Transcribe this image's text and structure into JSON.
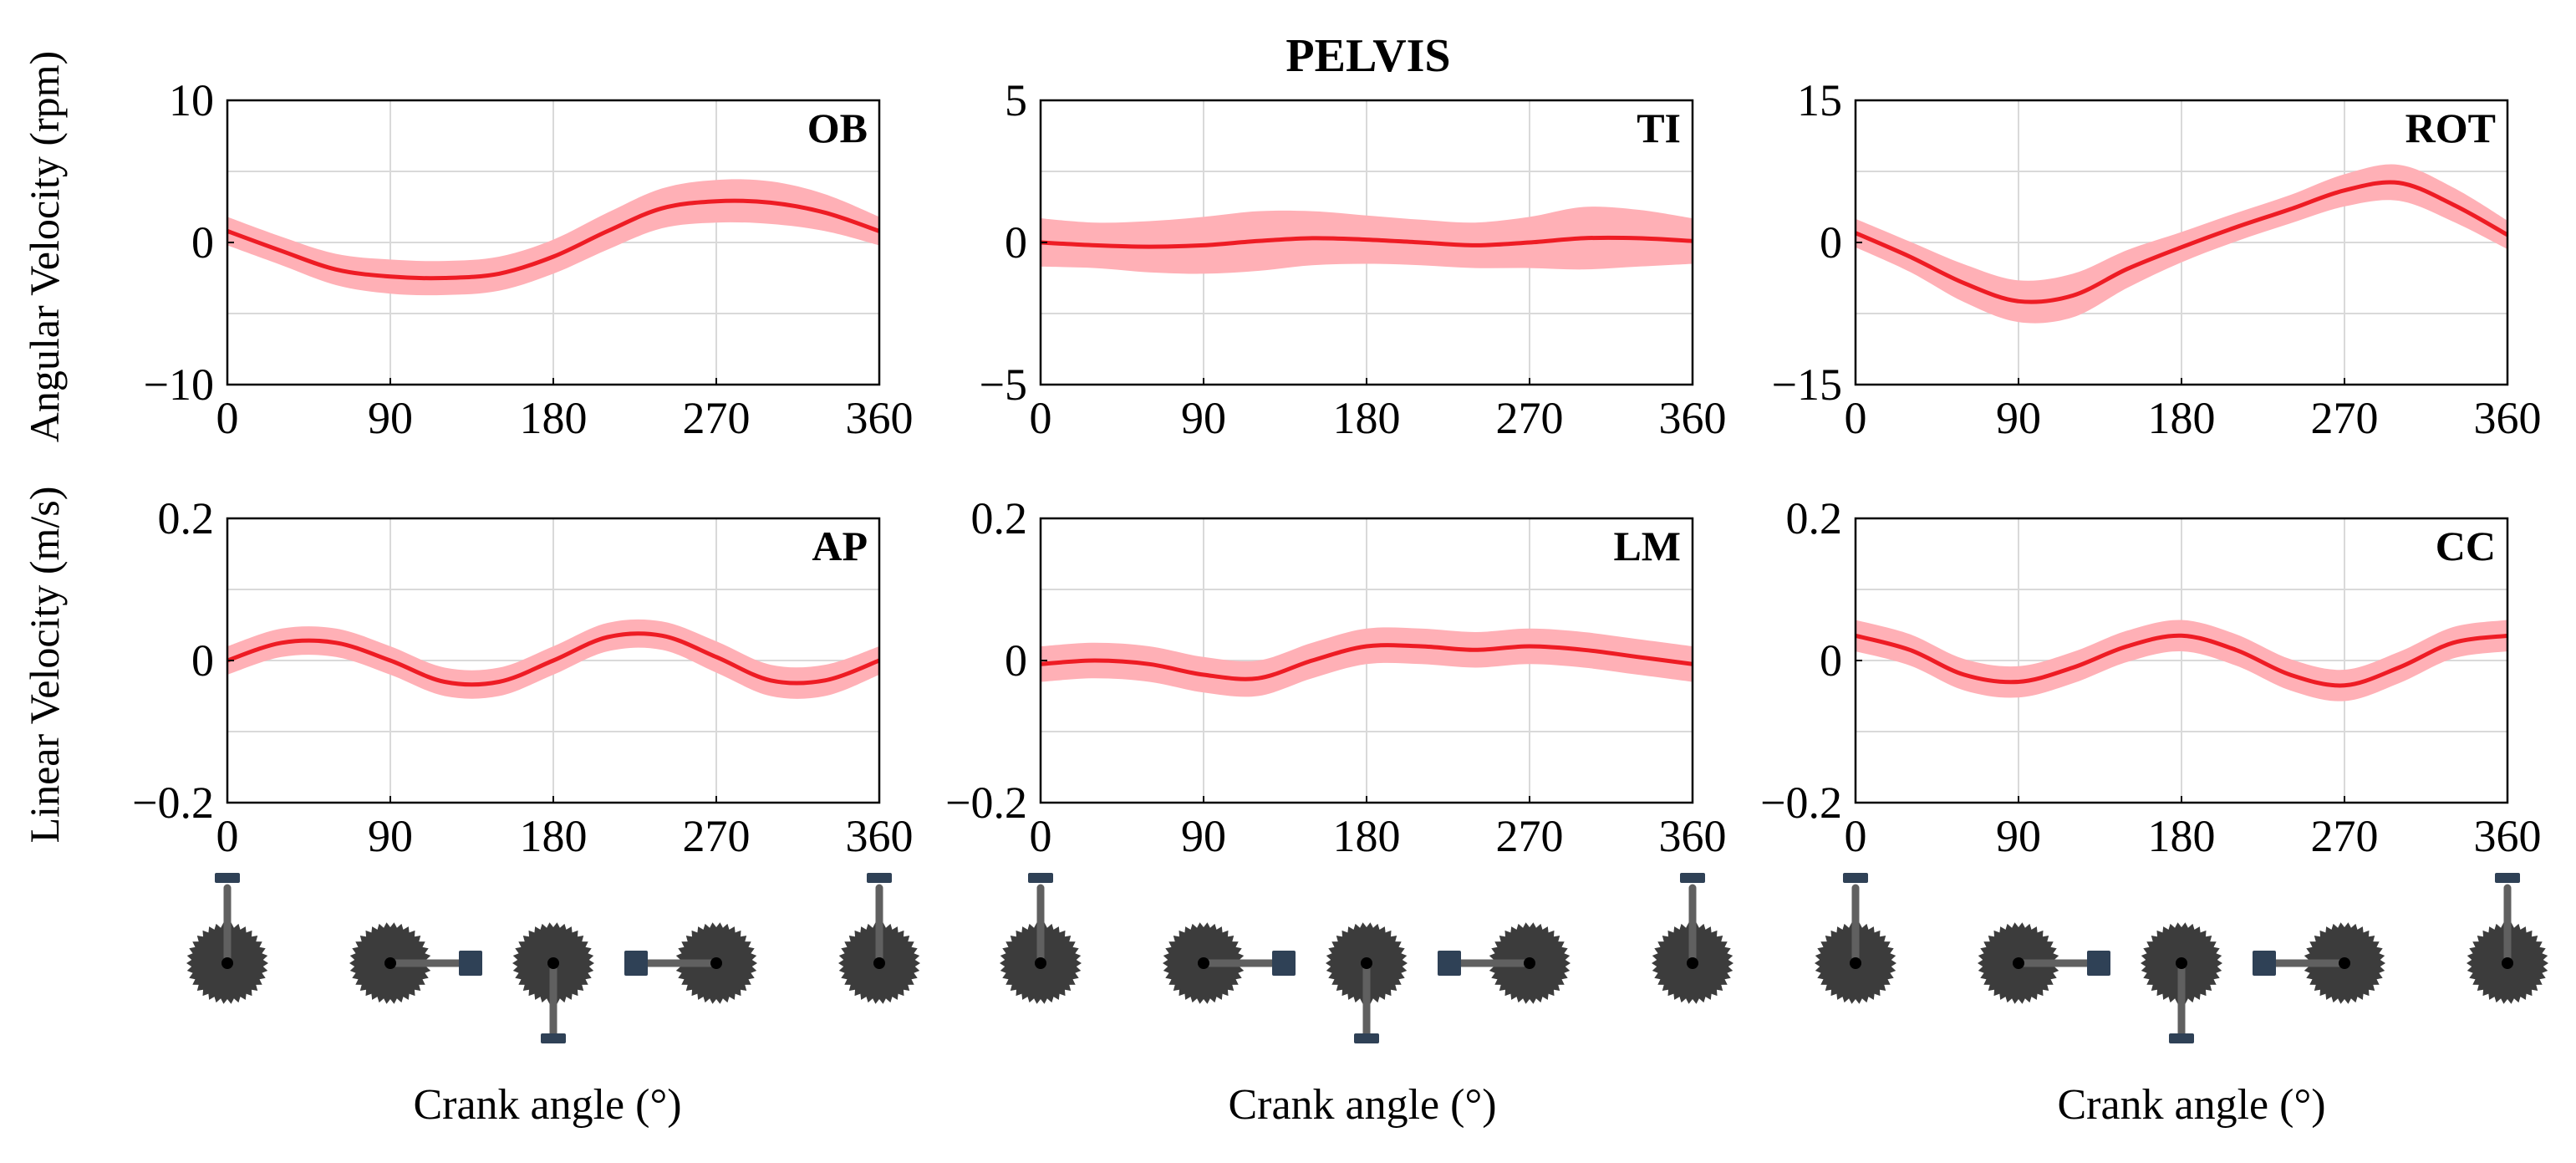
{
  "figure_title": "PELVIS",
  "row_labels": [
    "Angular Velocity (rpm)",
    "Linear Velocity (m/s)"
  ],
  "x_label": "Crank angle (°)",
  "colors": {
    "mean": "#ee1c24",
    "band": "#ffb0b6",
    "grid": "#d9d9d9",
    "sprocket": "#3c3c3c",
    "crank_arm": "#606060",
    "pedal": "#2f4156"
  },
  "crank_positions_deg": [
    0,
    90,
    180,
    270,
    360
  ],
  "chart_data": [
    {
      "id": "OB",
      "type": "line",
      "row": 0,
      "col": 0,
      "tag": "OB",
      "ylabel": "Angular Velocity (rpm)",
      "xlabel": "",
      "xlim": [
        0,
        360
      ],
      "ylim": [
        -10,
        10
      ],
      "xticks": [
        0,
        90,
        180,
        270,
        360
      ],
      "yticks": [
        -10,
        0,
        10
      ],
      "xtick_labels": [
        "0",
        "90",
        "180",
        "270",
        "360"
      ],
      "ytick_labels": [
        "−10",
        "0",
        "10"
      ],
      "x": [
        0,
        30,
        60,
        90,
        120,
        150,
        180,
        210,
        240,
        270,
        300,
        330,
        360
      ],
      "mean": [
        0.8,
        -0.6,
        -1.9,
        -2.4,
        -2.5,
        -2.2,
        -1.0,
        0.8,
        2.4,
        2.9,
        2.8,
        2.1,
        0.8
      ],
      "sd": [
        1.0,
        1.0,
        1.1,
        1.2,
        1.2,
        1.2,
        1.2,
        1.3,
        1.4,
        1.5,
        1.5,
        1.3,
        1.0
      ]
    },
    {
      "id": "TI",
      "type": "line",
      "row": 0,
      "col": 1,
      "tag": "TI",
      "ylabel": "",
      "xlabel": "",
      "xlim": [
        0,
        360
      ],
      "ylim": [
        -5,
        5
      ],
      "xticks": [
        0,
        90,
        180,
        270,
        360
      ],
      "yticks": [
        -5,
        0,
        5
      ],
      "xtick_labels": [
        "0",
        "90",
        "180",
        "270",
        "360"
      ],
      "ytick_labels": [
        "−5",
        "0",
        "5"
      ],
      "x": [
        0,
        30,
        60,
        90,
        120,
        150,
        180,
        210,
        240,
        270,
        300,
        330,
        360
      ],
      "mean": [
        0.0,
        -0.1,
        -0.15,
        -0.1,
        0.05,
        0.15,
        0.1,
        0.0,
        -0.1,
        0.0,
        0.15,
        0.15,
        0.05
      ],
      "sd": [
        0.85,
        0.8,
        0.9,
        1.0,
        1.05,
        0.95,
        0.85,
        0.8,
        0.8,
        0.9,
        1.1,
        1.0,
        0.8
      ]
    },
    {
      "id": "ROT",
      "type": "line",
      "row": 0,
      "col": 2,
      "tag": "ROT",
      "ylabel": "",
      "xlabel": "",
      "xlim": [
        0,
        360
      ],
      "ylim": [
        -15,
        15
      ],
      "xticks": [
        0,
        90,
        180,
        270,
        360
      ],
      "yticks": [
        -15,
        0,
        15
      ],
      "xtick_labels": [
        "0",
        "90",
        "180",
        "270",
        "360"
      ],
      "ytick_labels": [
        "−15",
        "0",
        "15"
      ],
      "x": [
        0,
        30,
        60,
        90,
        120,
        150,
        180,
        210,
        240,
        270,
        300,
        330,
        360
      ],
      "mean": [
        1.0,
        -1.5,
        -4.3,
        -6.2,
        -5.6,
        -2.8,
        -0.5,
        1.6,
        3.5,
        5.5,
        6.3,
        4.0,
        0.8
      ],
      "sd": [
        1.5,
        1.6,
        2.0,
        2.2,
        2.3,
        2.0,
        1.6,
        1.5,
        1.5,
        1.7,
        1.9,
        1.8,
        1.5
      ]
    },
    {
      "id": "AP",
      "type": "line",
      "row": 1,
      "col": 0,
      "tag": "AP",
      "ylabel": "Linear Velocity (m/s)",
      "xlabel": "Crank angle (°)",
      "xlim": [
        0,
        360
      ],
      "ylim": [
        -0.2,
        0.2
      ],
      "xticks": [
        0,
        90,
        180,
        270,
        360
      ],
      "yticks": [
        -0.2,
        0,
        0.2
      ],
      "xtick_labels": [
        "0",
        "90",
        "180",
        "270",
        "360"
      ],
      "ytick_labels": [
        "−0.2",
        "0",
        "0.2"
      ],
      "x": [
        0,
        30,
        60,
        90,
        120,
        150,
        180,
        210,
        240,
        270,
        300,
        330,
        360
      ],
      "mean": [
        0.0,
        0.025,
        0.025,
        0.0,
        -0.03,
        -0.03,
        0.0,
        0.033,
        0.035,
        0.005,
        -0.028,
        -0.028,
        0.0
      ],
      "sd": [
        0.02,
        0.02,
        0.02,
        0.02,
        0.02,
        0.02,
        0.02,
        0.02,
        0.02,
        0.022,
        0.022,
        0.022,
        0.02
      ]
    },
    {
      "id": "LM",
      "type": "line",
      "row": 1,
      "col": 1,
      "tag": "LM",
      "ylabel": "",
      "xlabel": "Crank angle (°)",
      "xlim": [
        0,
        360
      ],
      "ylim": [
        -0.2,
        0.2
      ],
      "xticks": [
        0,
        90,
        180,
        270,
        360
      ],
      "yticks": [
        -0.2,
        0,
        0.2
      ],
      "xtick_labels": [
        "0",
        "90",
        "180",
        "270",
        "360"
      ],
      "ytick_labels": [
        "−0.2",
        "0",
        "0.2"
      ],
      "x": [
        0,
        30,
        60,
        90,
        120,
        150,
        180,
        210,
        240,
        270,
        300,
        330,
        360
      ],
      "mean": [
        -0.005,
        0.0,
        -0.005,
        -0.02,
        -0.025,
        0.0,
        0.02,
        0.02,
        0.015,
        0.02,
        0.015,
        0.005,
        -0.005
      ],
      "sd": [
        0.025,
        0.025,
        0.025,
        0.025,
        0.025,
        0.025,
        0.025,
        0.025,
        0.025,
        0.025,
        0.025,
        0.025,
        0.025
      ]
    },
    {
      "id": "CC",
      "type": "line",
      "row": 1,
      "col": 2,
      "tag": "CC",
      "ylabel": "",
      "xlabel": "Crank angle (°)",
      "xlim": [
        0,
        360
      ],
      "ylim": [
        -0.2,
        0.2
      ],
      "xticks": [
        0,
        90,
        180,
        270,
        360
      ],
      "yticks": [
        -0.2,
        0,
        0.2
      ],
      "xtick_labels": [
        "0",
        "90",
        "180",
        "270",
        "360"
      ],
      "ytick_labels": [
        "−0.2",
        "0",
        "0.2"
      ],
      "x": [
        0,
        30,
        60,
        90,
        120,
        150,
        180,
        210,
        240,
        270,
        300,
        330,
        360
      ],
      "mean": [
        0.035,
        0.015,
        -0.02,
        -0.03,
        -0.01,
        0.02,
        0.035,
        0.015,
        -0.02,
        -0.035,
        -0.01,
        0.025,
        0.035
      ],
      "sd": [
        0.022,
        0.022,
        0.022,
        0.022,
        0.022,
        0.022,
        0.022,
        0.022,
        0.022,
        0.022,
        0.022,
        0.022,
        0.022
      ]
    }
  ]
}
